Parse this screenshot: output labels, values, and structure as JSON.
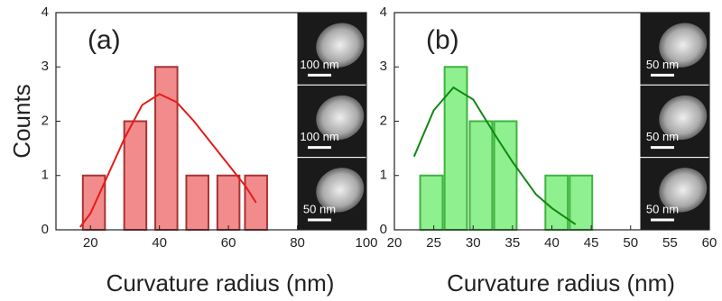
{
  "chart_data": [
    {
      "type": "bar",
      "panel_label": "(a)",
      "ylabel": "Counts",
      "xlabel": "Curvature radius (nm)",
      "x": [
        21,
        33,
        42,
        51,
        60,
        68
      ],
      "values": [
        1,
        2,
        3,
        1,
        1,
        1
      ],
      "color": "#f28b8b",
      "edge_color": "#a83434",
      "fit": {
        "x": [
          17,
          20,
          25,
          30,
          35,
          40,
          45,
          50,
          55,
          60,
          65,
          68
        ],
        "values": [
          0.05,
          0.3,
          1.0,
          1.7,
          2.3,
          2.5,
          2.35,
          2.0,
          1.6,
          1.2,
          0.8,
          0.5
        ],
        "color": "#e51b1b"
      },
      "xlim": [
        10,
        100
      ],
      "ylim": [
        0,
        4
      ],
      "xticks": [
        20,
        40,
        60,
        80,
        100
      ],
      "yticks": [
        0,
        1,
        2,
        3,
        4
      ],
      "insets": [
        "100 nm",
        "100 nm",
        "50 nm"
      ]
    },
    {
      "type": "bar",
      "panel_label": "(b)",
      "xlabel": "Curvature radius (nm)",
      "x": [
        24.7,
        27.8,
        31,
        34.1,
        40.6,
        43.7
      ],
      "values": [
        1,
        3,
        2,
        2,
        1,
        1
      ],
      "color": "#8ef08e",
      "edge_color": "#3fb33f",
      "fit": {
        "x": [
          22.5,
          25,
          27.5,
          30,
          33,
          35,
          38,
          40,
          43
        ],
        "values": [
          1.35,
          2.2,
          2.62,
          2.4,
          1.7,
          1.25,
          0.65,
          0.4,
          0.1
        ],
        "color": "#118811"
      },
      "xlim": [
        20,
        60
      ],
      "ylim": [
        0,
        4
      ],
      "xticks": [
        20,
        25,
        30,
        35,
        40,
        45,
        50,
        55,
        60
      ],
      "yticks": [
        0,
        1,
        2,
        3,
        4
      ],
      "insets": [
        "50 nm",
        "50 nm",
        "50 nm"
      ]
    }
  ]
}
